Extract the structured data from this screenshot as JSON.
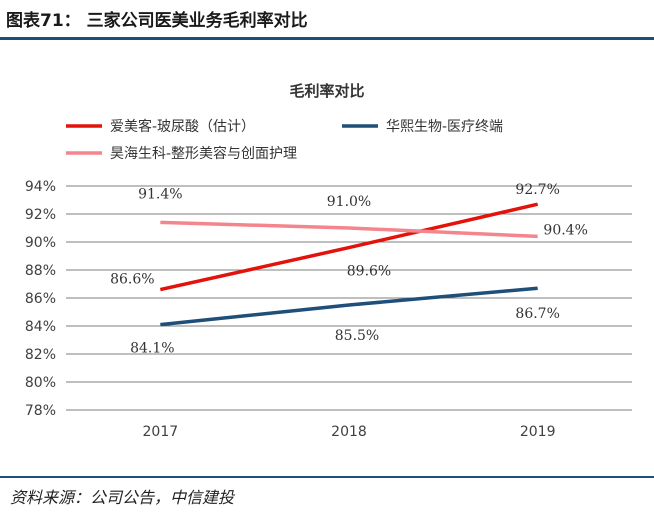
{
  "figure": {
    "title": "图表71：  三家公司医美业务毛利率对比",
    "source": "资料来源：公司公告，中信建投"
  },
  "colors": {
    "series_red": "#e3120b",
    "series_navy": "#1f4e79",
    "series_pink": "#f4858c",
    "rule": "#1f4e79",
    "grid": "#7f7f7f"
  },
  "chart_data": {
    "type": "line",
    "title": "毛利率对比",
    "xlabel": "",
    "ylabel": "",
    "x": [
      "2017",
      "2018",
      "2019"
    ],
    "ylim": [
      78,
      94
    ],
    "yticks": [
      "78%",
      "80%",
      "82%",
      "84%",
      "86%",
      "88%",
      "90%",
      "92%",
      "94%"
    ],
    "grid": true,
    "legend_position": "top",
    "series": [
      {
        "name": "爱美客-玻尿酸（估计）",
        "color_key": "series_red",
        "values": [
          86.6,
          89.6,
          92.7
        ],
        "labels": [
          "86.6%",
          "89.6%",
          "92.7%"
        ]
      },
      {
        "name": "华熙生物-医疗终端",
        "color_key": "series_navy",
        "values": [
          84.1,
          85.5,
          86.7
        ],
        "labels": [
          "84.1%",
          "85.5%",
          "86.7%"
        ]
      },
      {
        "name": "昊海生科-整形美容与创面护理",
        "color_key": "series_pink",
        "values": [
          91.4,
          91.0,
          90.4
        ],
        "labels": [
          "91.4%",
          "91.0%",
          "90.4%"
        ]
      }
    ]
  }
}
